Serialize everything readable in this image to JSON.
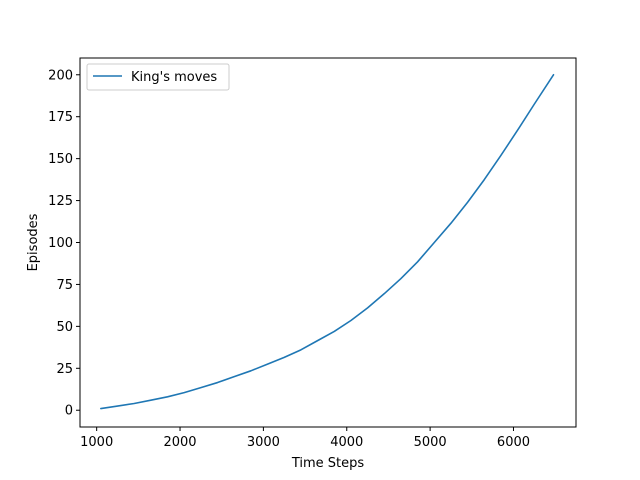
{
  "chart_data": {
    "type": "line",
    "xlabel": "Time Steps",
    "ylabel": "Episodes",
    "xlim": [
      800,
      6750
    ],
    "ylim": [
      -10,
      210
    ],
    "xticks": [
      1000,
      2000,
      3000,
      4000,
      5000,
      6000
    ],
    "yticks": [
      0,
      25,
      50,
      75,
      100,
      125,
      150,
      175,
      200
    ],
    "grid": false,
    "legend_position": "top-left",
    "series": [
      {
        "name": "King's moves",
        "color": "#1f77b4",
        "x": [
          1050,
          1250,
          1450,
          1650,
          1850,
          2050,
          2250,
          2450,
          2650,
          2850,
          3050,
          3250,
          3450,
          3650,
          3850,
          4050,
          4250,
          4450,
          4650,
          4850,
          5050,
          5250,
          5450,
          5650,
          5850,
          6050,
          6250,
          6480
        ],
        "y": [
          1,
          2.5,
          4,
          6,
          8,
          10.5,
          13.5,
          16.5,
          20,
          23.5,
          27.5,
          31.5,
          36,
          41.5,
          47,
          53.5,
          61,
          69.5,
          78.5,
          88.5,
          100,
          111.5,
          124,
          137.5,
          152,
          167,
          182.5,
          200
        ]
      }
    ]
  }
}
